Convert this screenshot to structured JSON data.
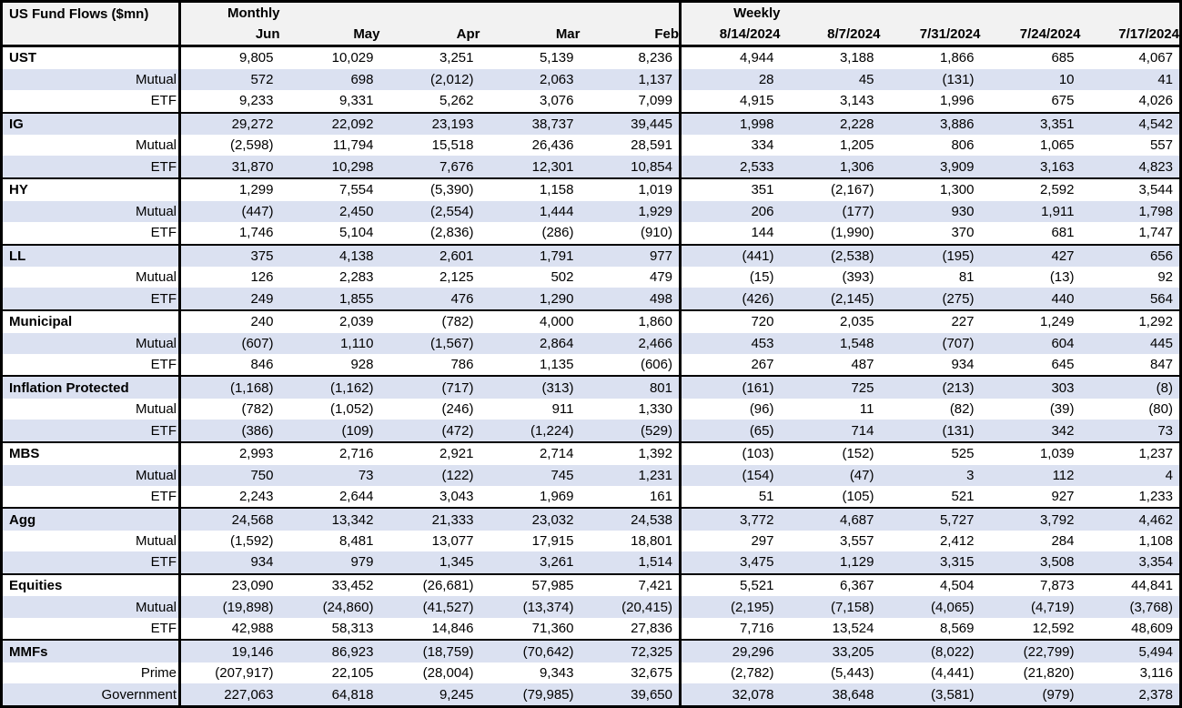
{
  "colors": {
    "stripe_row": "#dbe1f1",
    "header_bg": "#f2f2f2",
    "border": "#000000",
    "text": "#000000"
  },
  "chart_data": {
    "type": "table",
    "title": "US Fund Flows ($mn)",
    "column_groups": [
      {
        "label": "Monthly",
        "columns": [
          "Jun",
          "May",
          "Apr",
          "Mar",
          "Feb"
        ]
      },
      {
        "label": "Weekly",
        "columns": [
          "8/14/2024",
          "8/7/2024",
          "7/31/2024",
          "7/24/2024",
          "7/17/2024"
        ]
      }
    ],
    "groups": [
      {
        "rows": [
          {
            "label": "UST",
            "values": [
              "9,805",
              "10,029",
              "3,251",
              "5,139",
              "8,236",
              "4,944",
              "3,188",
              "1,866",
              "685",
              "4,067"
            ]
          },
          {
            "label": "Mutual",
            "values": [
              "572",
              "698",
              "(2,012)",
              "2,063",
              "1,137",
              "28",
              "45",
              "(131)",
              "10",
              "41"
            ]
          },
          {
            "label": "ETF",
            "values": [
              "9,233",
              "9,331",
              "5,262",
              "3,076",
              "7,099",
              "4,915",
              "3,143",
              "1,996",
              "675",
              "4,026"
            ]
          }
        ]
      },
      {
        "rows": [
          {
            "label": "IG",
            "values": [
              "29,272",
              "22,092",
              "23,193",
              "38,737",
              "39,445",
              "1,998",
              "2,228",
              "3,886",
              "3,351",
              "4,542"
            ]
          },
          {
            "label": "Mutual",
            "values": [
              "(2,598)",
              "11,794",
              "15,518",
              "26,436",
              "28,591",
              "334",
              "1,205",
              "806",
              "1,065",
              "557"
            ]
          },
          {
            "label": "ETF",
            "values": [
              "31,870",
              "10,298",
              "7,676",
              "12,301",
              "10,854",
              "2,533",
              "1,306",
              "3,909",
              "3,163",
              "4,823"
            ]
          }
        ]
      },
      {
        "rows": [
          {
            "label": "HY",
            "values": [
              "1,299",
              "7,554",
              "(5,390)",
              "1,158",
              "1,019",
              "351",
              "(2,167)",
              "1,300",
              "2,592",
              "3,544"
            ]
          },
          {
            "label": "Mutual",
            "values": [
              "(447)",
              "2,450",
              "(2,554)",
              "1,444",
              "1,929",
              "206",
              "(177)",
              "930",
              "1,911",
              "1,798"
            ]
          },
          {
            "label": "ETF",
            "values": [
              "1,746",
              "5,104",
              "(2,836)",
              "(286)",
              "(910)",
              "144",
              "(1,990)",
              "370",
              "681",
              "1,747"
            ]
          }
        ]
      },
      {
        "rows": [
          {
            "label": "LL",
            "values": [
              "375",
              "4,138",
              "2,601",
              "1,791",
              "977",
              "(441)",
              "(2,538)",
              "(195)",
              "427",
              "656"
            ]
          },
          {
            "label": "Mutual",
            "values": [
              "126",
              "2,283",
              "2,125",
              "502",
              "479",
              "(15)",
              "(393)",
              "81",
              "(13)",
              "92"
            ]
          },
          {
            "label": "ETF",
            "values": [
              "249",
              "1,855",
              "476",
              "1,290",
              "498",
              "(426)",
              "(2,145)",
              "(275)",
              "440",
              "564"
            ]
          }
        ]
      },
      {
        "rows": [
          {
            "label": "Municipal",
            "values": [
              "240",
              "2,039",
              "(782)",
              "4,000",
              "1,860",
              "720",
              "2,035",
              "227",
              "1,249",
              "1,292"
            ]
          },
          {
            "label": "Mutual",
            "values": [
              "(607)",
              "1,110",
              "(1,567)",
              "2,864",
              "2,466",
              "453",
              "1,548",
              "(707)",
              "604",
              "445"
            ]
          },
          {
            "label": "ETF",
            "values": [
              "846",
              "928",
              "786",
              "1,135",
              "(606)",
              "267",
              "487",
              "934",
              "645",
              "847"
            ]
          }
        ]
      },
      {
        "rows": [
          {
            "label": "Inflation Protected",
            "values": [
              "(1,168)",
              "(1,162)",
              "(717)",
              "(313)",
              "801",
              "(161)",
              "725",
              "(213)",
              "303",
              "(8)"
            ]
          },
          {
            "label": "Mutual",
            "values": [
              "(782)",
              "(1,052)",
              "(246)",
              "911",
              "1,330",
              "(96)",
              "11",
              "(82)",
              "(39)",
              "(80)"
            ]
          },
          {
            "label": "ETF",
            "values": [
              "(386)",
              "(109)",
              "(472)",
              "(1,224)",
              "(529)",
              "(65)",
              "714",
              "(131)",
              "342",
              "73"
            ]
          }
        ]
      },
      {
        "rows": [
          {
            "label": "MBS",
            "values": [
              "2,993",
              "2,716",
              "2,921",
              "2,714",
              "1,392",
              "(103)",
              "(152)",
              "525",
              "1,039",
              "1,237"
            ]
          },
          {
            "label": "Mutual",
            "values": [
              "750",
              "73",
              "(122)",
              "745",
              "1,231",
              "(154)",
              "(47)",
              "3",
              "112",
              "4"
            ]
          },
          {
            "label": "ETF",
            "values": [
              "2,243",
              "2,644",
              "3,043",
              "1,969",
              "161",
              "51",
              "(105)",
              "521",
              "927",
              "1,233"
            ]
          }
        ]
      },
      {
        "rows": [
          {
            "label": "Agg",
            "values": [
              "24,568",
              "13,342",
              "21,333",
              "23,032",
              "24,538",
              "3,772",
              "4,687",
              "5,727",
              "3,792",
              "4,462"
            ]
          },
          {
            "label": "Mutual",
            "values": [
              "(1,592)",
              "8,481",
              "13,077",
              "17,915",
              "18,801",
              "297",
              "3,557",
              "2,412",
              "284",
              "1,108"
            ]
          },
          {
            "label": "ETF",
            "values": [
              "934",
              "979",
              "1,345",
              "3,261",
              "1,514",
              "3,475",
              "1,129",
              "3,315",
              "3,508",
              "3,354"
            ]
          }
        ]
      },
      {
        "rows": [
          {
            "label": "Equities",
            "values": [
              "23,090",
              "33,452",
              "(26,681)",
              "57,985",
              "7,421",
              "5,521",
              "6,367",
              "4,504",
              "7,873",
              "44,841"
            ]
          },
          {
            "label": "Mutual",
            "values": [
              "(19,898)",
              "(24,860)",
              "(41,527)",
              "(13,374)",
              "(20,415)",
              "(2,195)",
              "(7,158)",
              "(4,065)",
              "(4,719)",
              "(3,768)"
            ]
          },
          {
            "label": "ETF",
            "values": [
              "42,988",
              "58,313",
              "14,846",
              "71,360",
              "27,836",
              "7,716",
              "13,524",
              "8,569",
              "12,592",
              "48,609"
            ]
          }
        ]
      },
      {
        "rows": [
          {
            "label": "MMFs",
            "values": [
              "19,146",
              "86,923",
              "(18,759)",
              "(70,642)",
              "72,325",
              "29,296",
              "33,205",
              "(8,022)",
              "(22,799)",
              "5,494"
            ]
          },
          {
            "label": "Prime",
            "values": [
              "(207,917)",
              "22,105",
              "(28,004)",
              "9,343",
              "32,675",
              "(2,782)",
              "(5,443)",
              "(4,441)",
              "(21,820)",
              "3,116"
            ]
          },
          {
            "label": "Government",
            "values": [
              "227,063",
              "64,818",
              "9,245",
              "(79,985)",
              "39,650",
              "32,078",
              "38,648",
              "(3,581)",
              "(979)",
              "2,378"
            ]
          }
        ]
      }
    ]
  }
}
